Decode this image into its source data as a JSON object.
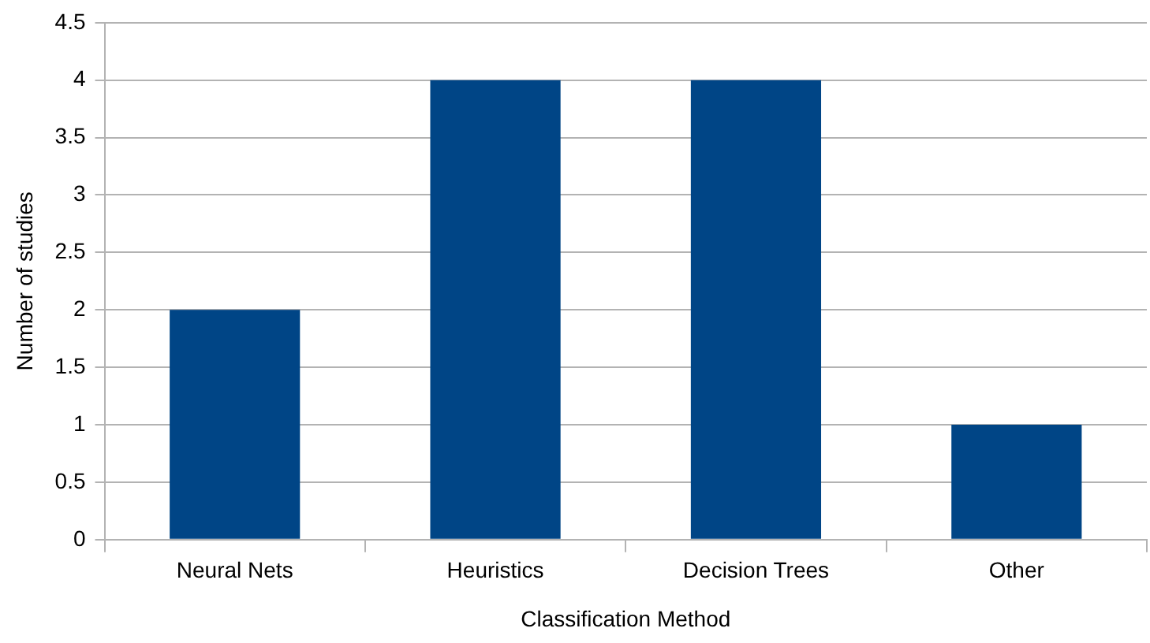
{
  "chart_data": {
    "type": "bar",
    "xlabel": "Classification Method",
    "ylabel": "Number of studies",
    "categories": [
      "Neural Nets",
      "Heuristics",
      "Decision Trees",
      "Other"
    ],
    "values": [
      2,
      4,
      4,
      1
    ],
    "color": "#004586",
    "ylim": [
      0,
      4.5
    ],
    "yticks": [
      0,
      0.5,
      1,
      1.5,
      2,
      2.5,
      3,
      3.5,
      4,
      4.5
    ],
    "grid": "y",
    "legend": false
  }
}
